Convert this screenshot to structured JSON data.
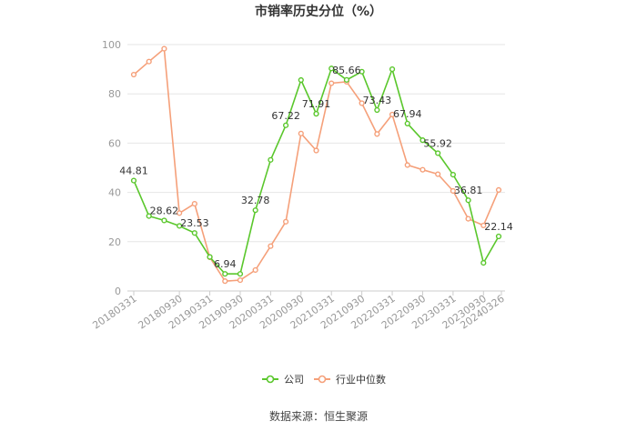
{
  "chart_data": {
    "type": "line",
    "title": "市销率历史分位（%）",
    "source": "数据来源：恒生聚源",
    "ylim": [
      0,
      100
    ],
    "yticks": [
      0,
      20,
      40,
      60,
      80,
      100
    ],
    "grid": true,
    "legend_position": "bottom",
    "x_tick_labels": [
      "20180331",
      "20180930",
      "20190331",
      "20190930",
      "20200331",
      "20200930",
      "20210331",
      "20210930",
      "20220331",
      "20220930",
      "20230331",
      "20230930",
      "20240326"
    ],
    "x_tick_index": [
      0,
      3,
      5,
      7,
      9,
      11,
      13,
      15,
      17,
      19,
      21,
      23,
      25
    ],
    "series": [
      {
        "name": "公司",
        "color": "#5ac72c",
        "values": [
          44.81,
          30.4,
          28.62,
          26.4,
          23.53,
          13.8,
          6.94,
          6.94,
          32.78,
          53.2,
          67.22,
          85.6,
          71.91,
          90.3,
          85.66,
          89.0,
          73.43,
          90.0,
          67.94,
          61.2,
          55.92,
          47.2,
          36.81,
          11.4,
          22.14
        ],
        "labels": {
          "0": "44.81",
          "2": "28.62",
          "4": "23.53",
          "6": "6.94",
          "8": "32.78",
          "10": "67.22",
          "12": "71.91",
          "14": "85.66",
          "16": "73.43",
          "18": "67.94",
          "20": "55.92",
          "22": "36.81",
          "24": "22.14"
        }
      },
      {
        "name": "行业中位数",
        "color": "#f5a07a",
        "values": [
          87.8,
          93.1,
          98.3,
          31.6,
          35.4,
          13.7,
          4.0,
          4.4,
          8.5,
          18.2,
          28.1,
          63.9,
          57.0,
          84.3,
          84.9,
          76.2,
          63.7,
          71.6,
          51.1,
          49.2,
          47.4,
          40.6,
          29.3,
          26.6,
          41.0
        ]
      }
    ]
  }
}
